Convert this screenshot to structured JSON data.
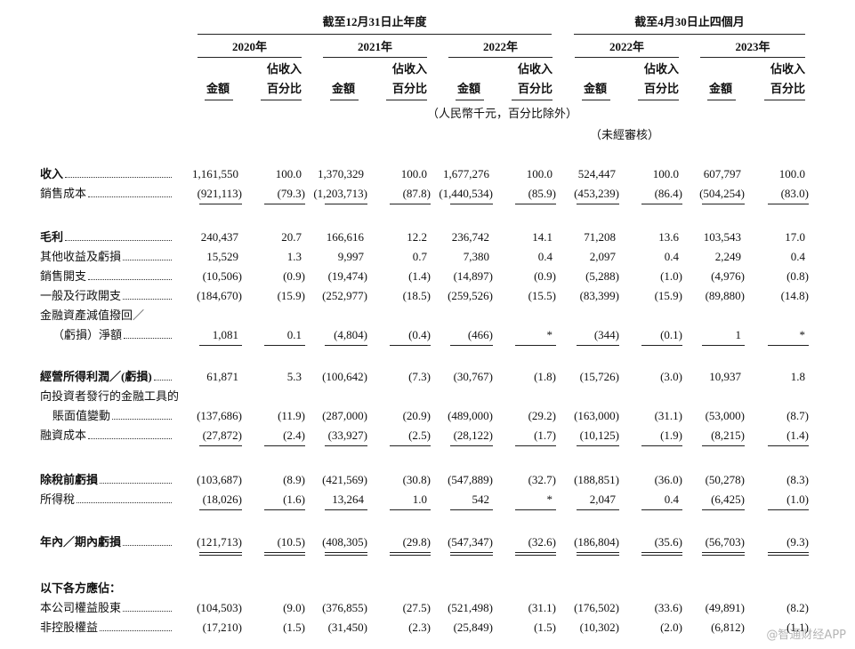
{
  "header": {
    "group1": "截至12月31日止年度",
    "group2": "截至4月30日止四個月",
    "years": [
      "2020年",
      "2021年",
      "2022年",
      "2022年",
      "2023年"
    ],
    "amount": "金額",
    "pct_line1": "佔收入",
    "pct_line2": "百分比",
    "unit_note": "（人民幣千元，百分比除外）",
    "unaudited": "（未經審核）"
  },
  "sections": [
    [
      {
        "label": [
          "收入"
        ],
        "values": [
          "1,161,550",
          "100.0",
          "1,370,329",
          "100.0",
          "1,677,276",
          "100.0",
          "524,447",
          "100.0",
          "607,797",
          "100.0"
        ]
      },
      {
        "label": [
          "銷售成本"
        ],
        "values": [
          "(921,113)",
          "(79.3)",
          "(1,203,713)",
          "(87.8)",
          "(1,440,534)",
          "(85.9)",
          "(453,239)",
          "(86.4)",
          "(504,254)",
          "(83.0)"
        ]
      }
    ],
    [
      {
        "label": [
          "毛利"
        ],
        "values": [
          "240,437",
          "20.7",
          "166,616",
          "12.2",
          "236,742",
          "14.1",
          "71,208",
          "13.6",
          "103,543",
          "17.0"
        ]
      },
      {
        "label": [
          "其他收益及虧損"
        ],
        "values": [
          "15,529",
          "1.3",
          "9,997",
          "0.7",
          "7,380",
          "0.4",
          "2,097",
          "0.4",
          "2,249",
          "0.4"
        ]
      },
      {
        "label": [
          "銷售開支"
        ],
        "values": [
          "(10,506)",
          "(0.9)",
          "(19,474)",
          "(1.4)",
          "(14,897)",
          "(0.9)",
          "(5,288)",
          "(1.0)",
          "(4,976)",
          "(0.8)"
        ]
      },
      {
        "label": [
          "一般及行政開支"
        ],
        "values": [
          "(184,670)",
          "(15.9)",
          "(252,977)",
          "(18.5)",
          "(259,526)",
          "(15.5)",
          "(83,399)",
          "(15.9)",
          "(89,880)",
          "(14.8)"
        ]
      },
      {
        "label": [
          "金融資產減值撥回／",
          "（虧損）淨額"
        ],
        "values": [
          "1,081",
          "0.1",
          "(4,804)",
          "(0.4)",
          "(466)",
          "*",
          "(344)",
          "(0.1)",
          "1",
          "*"
        ]
      }
    ],
    [
      {
        "label": [
          "經營所得利潤／(虧損)"
        ],
        "values": [
          "61,871",
          "5.3",
          "(100,642)",
          "(7.3)",
          "(30,767)",
          "(1.8)",
          "(15,726)",
          "(3.0)",
          "10,937",
          "1.8"
        ]
      },
      {
        "label": [
          "向投資者發行的金融工具的",
          "賬面值變動"
        ],
        "values": [
          "(137,686)",
          "(11.9)",
          "(287,000)",
          "(20.9)",
          "(489,000)",
          "(29.2)",
          "(163,000)",
          "(31.1)",
          "(53,000)",
          "(8.7)"
        ]
      },
      {
        "label": [
          "融資成本"
        ],
        "values": [
          "(27,872)",
          "(2.4)",
          "(33,927)",
          "(2.5)",
          "(28,122)",
          "(1.7)",
          "(10,125)",
          "(1.9)",
          "(8,215)",
          "(1.4)"
        ]
      }
    ],
    [
      {
        "label": [
          "除稅前虧損"
        ],
        "values": [
          "(103,687)",
          "(8.9)",
          "(421,569)",
          "(30.8)",
          "(547,889)",
          "(32.7)",
          "(188,851)",
          "(36.0)",
          "(50,278)",
          "(8.3)"
        ]
      },
      {
        "label": [
          "所得稅"
        ],
        "values": [
          "(18,026)",
          "(1.6)",
          "13,264",
          "1.0",
          "542",
          "*",
          "2,047",
          "0.4",
          "(6,425)",
          "(1.0)"
        ]
      }
    ],
    [
      {
        "label": [
          "年內／期內虧損"
        ],
        "values": [
          "(121,713)",
          "(10.5)",
          "(408,305)",
          "(29.8)",
          "(547,347)",
          "(32.6)",
          "(186,804)",
          "(35.6)",
          "(56,703)",
          "(9.3)"
        ]
      }
    ],
    [
      {
        "label": [
          "以下各方應佔："
        ]
      },
      {
        "label": [
          "本公司權益股東"
        ],
        "values": [
          "(104,503)",
          "(9.0)",
          "(376,855)",
          "(27.5)",
          "(521,498)",
          "(31.1)",
          "(176,502)",
          "(33.6)",
          "(49,891)",
          "(8.2)"
        ]
      },
      {
        "label": [
          "非控股權益"
        ],
        "values": [
          "(17,210)",
          "(1.5)",
          "(31,450)",
          "(2.3)",
          "(25,849)",
          "(1.5)",
          "(10,302)",
          "(2.0)",
          "(6,812)",
          "(1.1)"
        ]
      }
    ]
  ],
  "watermark": "@智通财经APP"
}
